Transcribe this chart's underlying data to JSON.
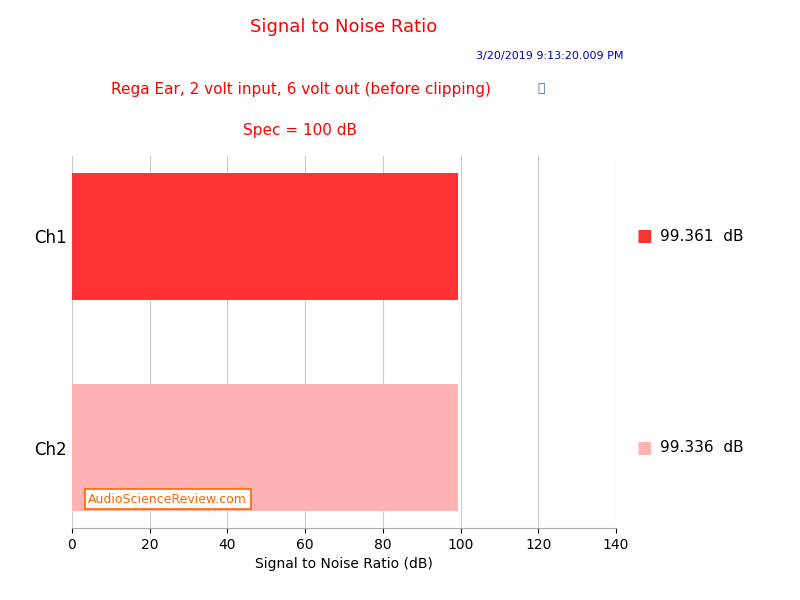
{
  "title": "Signal to Noise Ratio",
  "title_color": "#FF0000",
  "subtitle_line1": "Rega Ear, 2 volt input, 6 volt out (before clipping)",
  "subtitle_line2": "Spec = 100 dB",
  "subtitle_color": "#FF0000",
  "timestamp": "3/20/2019 9:13:20.009 PM",
  "timestamp_color": "#0000CC",
  "xlabel": "Signal to Noise Ratio (dB)",
  "categories": [
    "Ch2",
    "Ch1"
  ],
  "values": [
    99.336,
    99.361
  ],
  "bar_colors": [
    "#FFB3B3",
    "#FF3333"
  ],
  "legend_colors": [
    "#FF3333",
    "#FFB3B3"
  ],
  "legend_labels": [
    "99.361  dB",
    "99.336  dB"
  ],
  "xlim": [
    0,
    140
  ],
  "xticks": [
    0,
    20,
    40,
    60,
    80,
    100,
    120,
    140
  ],
  "watermark": "AudioScienceReview.com",
  "watermark_color": "#FF6600",
  "background_color": "#FFFFFF",
  "grid_color": "#CCCCCC",
  "title_fontsize": 13,
  "subtitle_fontsize": 11,
  "label_fontsize": 11,
  "tick_fontsize": 10,
  "timestamp_fontsize": 8,
  "bar_height": 0.6,
  "ap_logo": "Ⓐ"
}
